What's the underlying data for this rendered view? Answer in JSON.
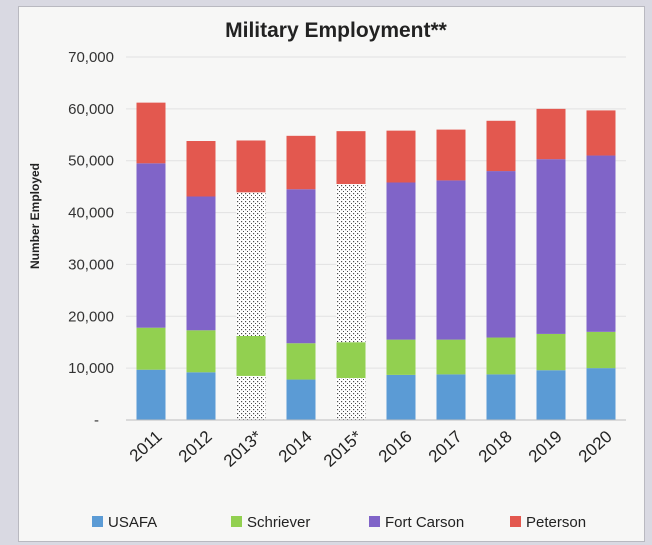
{
  "chart_data": {
    "type": "bar",
    "stacked": true,
    "title": "Military Employment**",
    "ylabel": "Number Employed",
    "ylim": [
      0,
      70000
    ],
    "yticks": [
      0,
      10000,
      20000,
      30000,
      40000,
      50000,
      60000,
      70000
    ],
    "ytick_labels": [
      "-",
      "10,000",
      "20,000",
      "30,000",
      "40,000",
      "50,000",
      "60,000",
      "70,000"
    ],
    "categories": [
      "2011",
      "2012",
      "2013*",
      "2014",
      "2015*",
      "2016",
      "2017",
      "2018",
      "2019",
      "2020"
    ],
    "hatched_categories": [
      "2013*",
      "2015*"
    ],
    "hatched_series": [
      "USAFA",
      "Fort Carson"
    ],
    "series": [
      {
        "name": "USAFA",
        "color": "#5b9bd5",
        "values": [
          9700,
          9200,
          8500,
          7800,
          8100,
          8700,
          8800,
          8800,
          9600,
          10000
        ]
      },
      {
        "name": "Schriever",
        "color": "#92d050",
        "values": [
          8100,
          8100,
          7700,
          7000,
          6900,
          6800,
          6700,
          7100,
          7000,
          7000
        ]
      },
      {
        "name": "Fort Carson",
        "color": "#8064c8",
        "values": [
          31700,
          25800,
          27700,
          29700,
          30500,
          30300,
          30700,
          32100,
          33700,
          34000
        ]
      },
      {
        "name": "Peterson",
        "color": "#e3584f",
        "values": [
          11700,
          10700,
          10000,
          10300,
          10200,
          10000,
          9800,
          9700,
          9700,
          8700
        ]
      }
    ],
    "legend": {
      "position": "bottom"
    },
    "grid": true
  }
}
